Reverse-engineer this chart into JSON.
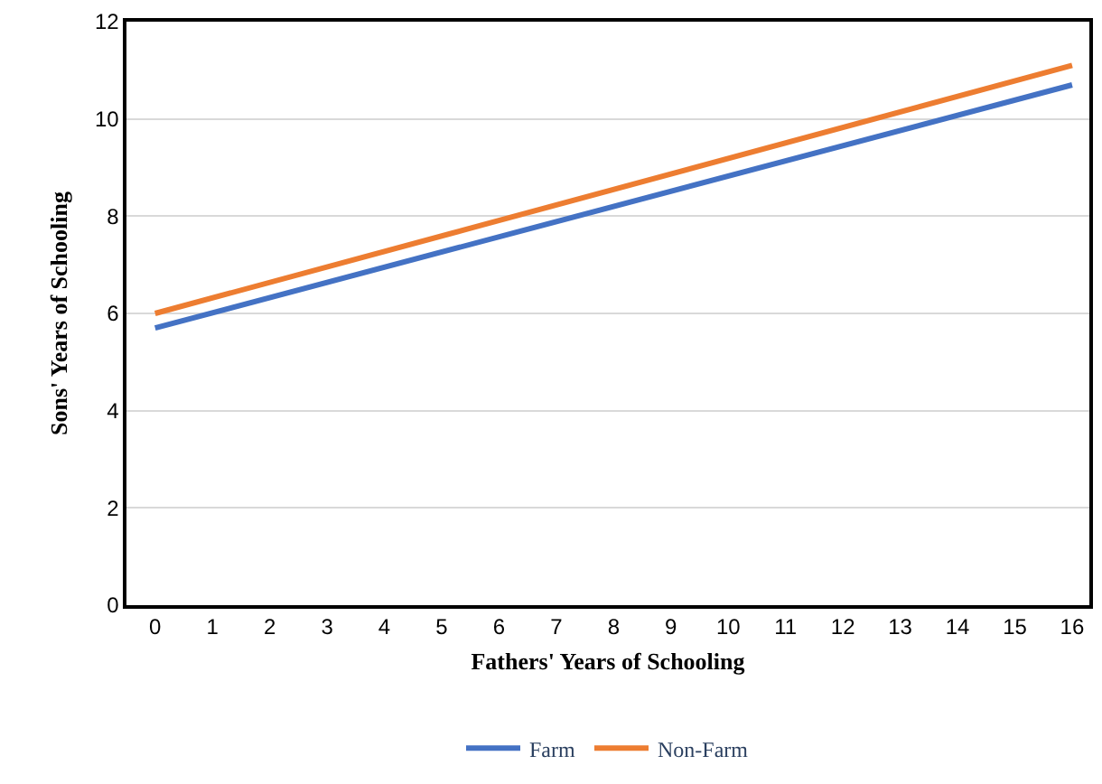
{
  "chart_data": {
    "type": "line",
    "xlabel": "Fathers' Years of Schooling",
    "ylabel": "Sons' Years of Schooling",
    "x": [
      0,
      16
    ],
    "series": [
      {
        "name": "Farm",
        "color": "#4472c4",
        "values": [
          5.7,
          10.7
        ]
      },
      {
        "name": "Non-Farm",
        "color": "#ed7d31",
        "values": [
          6.0,
          11.1
        ]
      }
    ],
    "xlim": [
      -0.5,
      16.3
    ],
    "xticks": [
      0,
      1,
      2,
      3,
      4,
      5,
      6,
      7,
      8,
      9,
      10,
      11,
      12,
      13,
      14,
      15,
      16
    ],
    "ylim": [
      0,
      12
    ],
    "yticks": [
      0,
      2,
      4,
      6,
      8,
      10,
      12
    ],
    "grid": "y",
    "legend": "bottom",
    "marker": "none",
    "line_style": "solid"
  }
}
